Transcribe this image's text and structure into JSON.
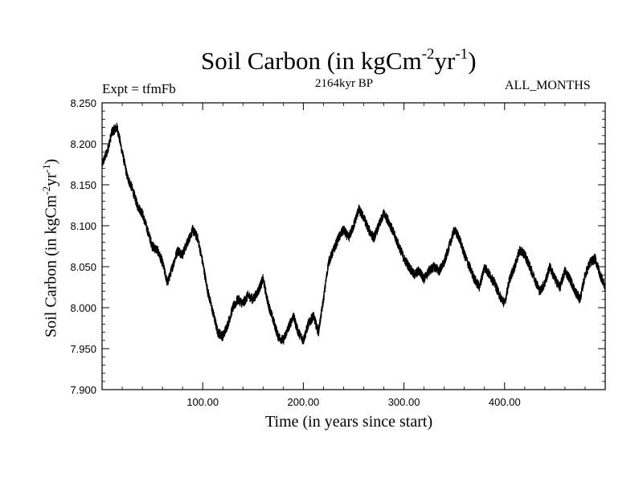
{
  "chart_data": {
    "type": "line",
    "title": "Soil Carbon (in kgCm",
    "title_exp1": "-2",
    "title_mid": "yr",
    "title_exp2": "-1",
    "title_end": ")",
    "subtitle": "2164kyr BP",
    "left_annotation": "Expt = tfmFb",
    "right_annotation": "ALL_MONTHS",
    "xlabel": "Time (in years since start)",
    "ylabel": "Soil Carbon (in kgCm",
    "ylabel_exp1": "-2",
    "ylabel_mid": "yr",
    "ylabel_exp2": "-1",
    "ylabel_end": ")",
    "xlim": [
      0,
      500
    ],
    "ylim": [
      7.9,
      8.25
    ],
    "x_ticks": [
      100,
      200,
      300,
      400
    ],
    "x_tick_labels": [
      "100.00",
      "200.00",
      "300.00",
      "400.00"
    ],
    "y_ticks": [
      7.9,
      7.95,
      8.0,
      8.05,
      8.1,
      8.15,
      8.2,
      8.25
    ],
    "y_tick_labels": [
      "7.900",
      "7.950",
      "8.000",
      "8.050",
      "8.100",
      "8.150",
      "8.200",
      "8.250"
    ],
    "series": [
      {
        "name": "Soil Carbon",
        "color": "#000000",
        "noise_amplitude": 0.006,
        "x": [
          0,
          5,
          10,
          15,
          20,
          25,
          30,
          35,
          40,
          45,
          50,
          55,
          60,
          65,
          70,
          75,
          80,
          85,
          90,
          95,
          100,
          105,
          110,
          115,
          120,
          125,
          130,
          135,
          140,
          145,
          150,
          155,
          160,
          165,
          170,
          175,
          180,
          185,
          190,
          195,
          200,
          205,
          210,
          215,
          220,
          225,
          230,
          235,
          240,
          245,
          250,
          255,
          260,
          265,
          270,
          275,
          280,
          285,
          290,
          295,
          300,
          305,
          310,
          315,
          320,
          325,
          330,
          335,
          340,
          345,
          350,
          355,
          360,
          365,
          370,
          375,
          380,
          385,
          390,
          395,
          400,
          405,
          410,
          415,
          420,
          425,
          430,
          435,
          440,
          445,
          450,
          455,
          460,
          465,
          470,
          475,
          480,
          485,
          490,
          495,
          500
        ],
        "y": [
          8.175,
          8.19,
          8.215,
          8.22,
          8.19,
          8.16,
          8.145,
          8.125,
          8.115,
          8.095,
          8.075,
          8.07,
          8.055,
          8.03,
          8.05,
          8.07,
          8.065,
          8.08,
          8.095,
          8.085,
          8.055,
          8.02,
          7.995,
          7.97,
          7.965,
          7.98,
          8.0,
          8.01,
          8.005,
          8.015,
          8.01,
          8.02,
          8.035,
          8.005,
          7.985,
          7.965,
          7.96,
          7.975,
          7.99,
          7.97,
          7.96,
          7.98,
          7.99,
          7.97,
          8.01,
          8.055,
          8.07,
          8.085,
          8.095,
          8.085,
          8.1,
          8.12,
          8.11,
          8.095,
          8.085,
          8.1,
          8.115,
          8.105,
          8.09,
          8.075,
          8.06,
          8.05,
          8.04,
          8.045,
          8.035,
          8.045,
          8.05,
          8.045,
          8.055,
          8.075,
          8.095,
          8.085,
          8.065,
          8.05,
          8.035,
          8.025,
          8.05,
          8.04,
          8.03,
          8.015,
          8.005,
          8.035,
          8.05,
          8.07,
          8.065,
          8.05,
          8.035,
          8.02,
          8.03,
          8.05,
          8.035,
          8.025,
          8.045,
          8.035,
          8.02,
          8.01,
          8.04,
          8.055,
          8.06,
          8.04,
          8.025
        ]
      }
    ]
  }
}
